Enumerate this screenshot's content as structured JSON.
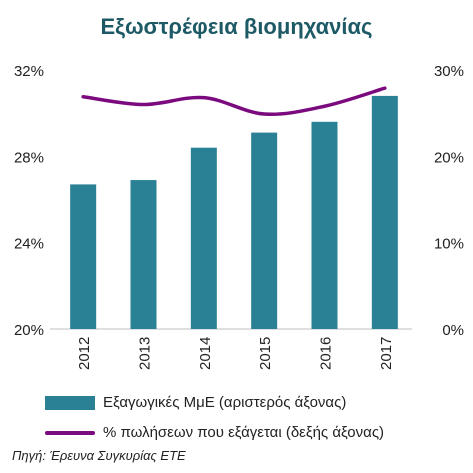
{
  "title": "Εξωστρέφεια βιομηχανίας",
  "source": "Πηγή: Έρευνα Συγκυρίας ΕΤΕ",
  "colors": {
    "bar": "#2a8196",
    "line": "#7b0a7e",
    "title": "#1e5a66"
  },
  "chart_data": {
    "type": "bar+line",
    "title": "Εξωστρέφεια βιομηχανίας",
    "categories": [
      "2012",
      "2013",
      "2014",
      "2015",
      "2016",
      "2017"
    ],
    "series": [
      {
        "name": "Εξαγωγικές ΜμΕ (αριστερός άξονας)",
        "type": "bar",
        "axis": "left",
        "values": [
          26.7,
          26.9,
          28.4,
          29.1,
          29.6,
          30.8
        ]
      },
      {
        "name": "% πωλήσεων που εξάγεται (δεξής άξονας)",
        "type": "line",
        "axis": "right",
        "values": [
          26.9,
          26.0,
          26.8,
          24.9,
          25.8,
          27.9
        ]
      }
    ],
    "left_axis": {
      "ylim": [
        20,
        32
      ],
      "ticks": [
        "20%",
        "24%",
        "28%",
        "32%"
      ],
      "tick_values": [
        20,
        24,
        28,
        32
      ]
    },
    "right_axis": {
      "ylim": [
        0,
        30
      ],
      "ticks": [
        "0%",
        "10%",
        "20%",
        "30%"
      ],
      "tick_values": [
        0,
        10,
        20,
        30
      ]
    },
    "grid": false,
    "legend_position": "bottom"
  }
}
